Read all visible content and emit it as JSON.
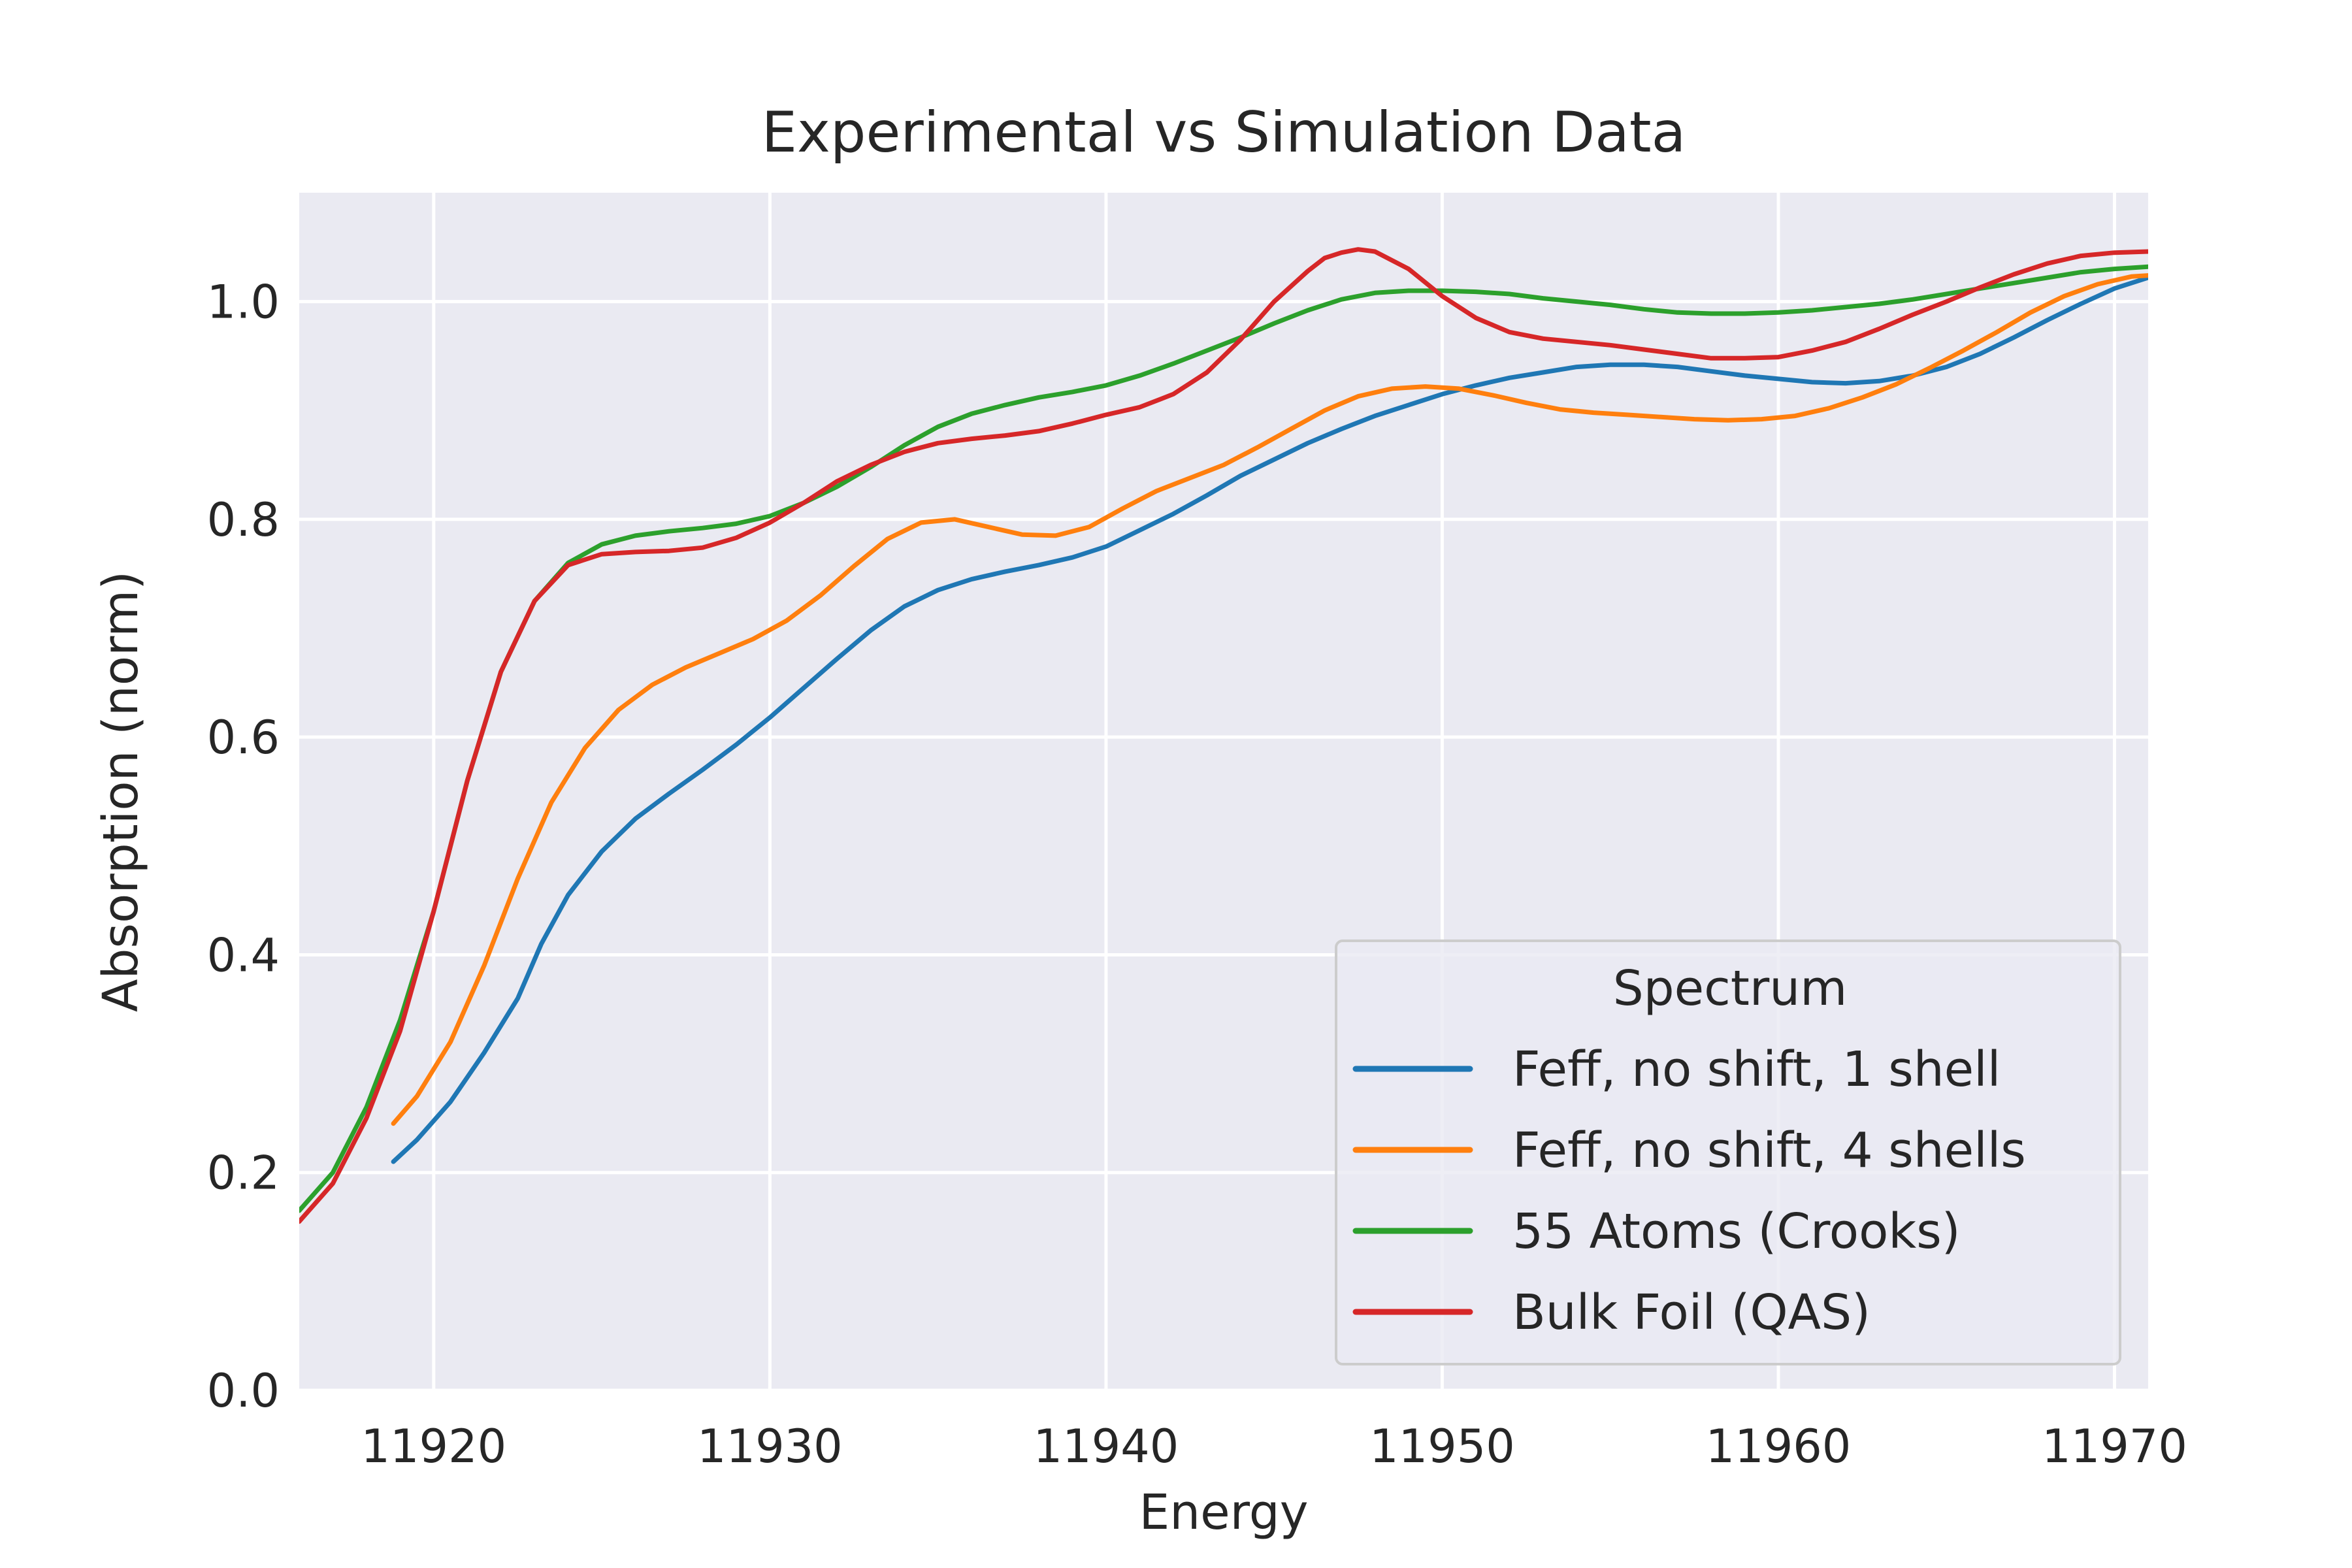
{
  "chart_data": {
    "type": "line",
    "title": "Experimental vs Simulation Data",
    "xlabel": "Energy",
    "ylabel": "Absorption (norm)",
    "xlim": [
      11916,
      11971
    ],
    "ylim": [
      0.0,
      1.1
    ],
    "xticks": [
      "11920",
      "11930",
      "11940",
      "11950",
      "11960",
      "11970"
    ],
    "yticks": [
      "0.0",
      "0.2",
      "0.4",
      "0.6",
      "0.8",
      "1.0"
    ],
    "grid": true,
    "legend": {
      "title": "Spectrum",
      "position": "lower-right"
    },
    "series": [
      {
        "name": "Feff, no shift, 1 shell",
        "color": "#1f77b4",
        "x": [
          11918.8,
          11919.5,
          11920.5,
          11921.5,
          11922.5,
          11923.2,
          11924,
          11925,
          11926,
          11927,
          11928,
          11929,
          11930,
          11931,
          11932,
          11933,
          11934,
          11935,
          11936,
          11937,
          11938,
          11939,
          11940,
          11941,
          11942,
          11943,
          11944,
          11945,
          11946,
          11947,
          11948,
          11949,
          11950,
          11951,
          11952,
          11953,
          11954,
          11955,
          11956,
          11957,
          11958,
          11959,
          11960,
          11961,
          11962,
          11963,
          11964,
          11965,
          11966,
          11967,
          11968,
          11969,
          11970,
          11971
        ],
        "y": [
          0.21,
          0.23,
          0.265,
          0.31,
          0.36,
          0.41,
          0.455,
          0.495,
          0.525,
          0.548,
          0.57,
          0.593,
          0.618,
          0.645,
          0.672,
          0.698,
          0.72,
          0.735,
          0.745,
          0.752,
          0.758,
          0.765,
          0.775,
          0.79,
          0.805,
          0.822,
          0.84,
          0.855,
          0.87,
          0.883,
          0.895,
          0.905,
          0.915,
          0.923,
          0.93,
          0.935,
          0.94,
          0.942,
          0.942,
          0.94,
          0.936,
          0.932,
          0.929,
          0.926,
          0.925,
          0.927,
          0.932,
          0.94,
          0.952,
          0.967,
          0.983,
          0.998,
          1.012,
          1.022
        ]
      },
      {
        "name": "Feff, no shift, 4 shells",
        "color": "#ff7f0e",
        "x": [
          11918.8,
          11919.5,
          11920.5,
          11921.5,
          11922.5,
          11923.5,
          11924.5,
          11925.5,
          11926.5,
          11927.5,
          11928.5,
          11929.5,
          11930.5,
          11931.5,
          11932.5,
          11933.5,
          11934.5,
          11935.5,
          11936.5,
          11937.5,
          11938.5,
          11939.5,
          11940.5,
          11941.5,
          11942.5,
          11943.5,
          11944.5,
          11945.5,
          11946.5,
          11947.5,
          11948.5,
          11949.5,
          11950.5,
          11951.5,
          11952.5,
          11953.5,
          11954.5,
          11955.5,
          11956.5,
          11957.5,
          11958.5,
          11959.5,
          11960.5,
          11961.5,
          11962.5,
          11963.5,
          11964.5,
          11965.5,
          11966.5,
          11967.5,
          11968.5,
          11969.5,
          11970.5,
          11971
        ],
        "y": [
          0.245,
          0.27,
          0.32,
          0.39,
          0.47,
          0.54,
          0.59,
          0.625,
          0.648,
          0.664,
          0.677,
          0.69,
          0.707,
          0.73,
          0.757,
          0.782,
          0.797,
          0.8,
          0.793,
          0.786,
          0.785,
          0.793,
          0.81,
          0.826,
          0.838,
          0.85,
          0.866,
          0.883,
          0.9,
          0.913,
          0.92,
          0.922,
          0.92,
          0.914,
          0.907,
          0.901,
          0.898,
          0.896,
          0.894,
          0.892,
          0.891,
          0.892,
          0.895,
          0.902,
          0.912,
          0.924,
          0.939,
          0.955,
          0.972,
          0.99,
          1.005,
          1.016,
          1.023,
          1.024
        ]
      },
      {
        "name": "55 Atoms (Crooks)",
        "color": "#2ca02c",
        "x": [
          11916,
          11917,
          11918,
          11919,
          11920,
          11921,
          11922,
          11923,
          11924,
          11925,
          11926,
          11927,
          11928,
          11929,
          11930,
          11931,
          11932,
          11933,
          11934,
          11935,
          11936,
          11937,
          11938,
          11939,
          11940,
          11941,
          11942,
          11943,
          11944,
          11945,
          11946,
          11947,
          11948,
          11949,
          11950,
          11951,
          11952,
          11953,
          11954,
          11955,
          11956,
          11957,
          11958,
          11959,
          11960,
          11961,
          11962,
          11963,
          11964,
          11965,
          11966,
          11967,
          11968,
          11969,
          11970,
          11971
        ],
        "y": [
          0.165,
          0.2,
          0.26,
          0.34,
          0.44,
          0.56,
          0.66,
          0.725,
          0.76,
          0.777,
          0.785,
          0.789,
          0.792,
          0.796,
          0.803,
          0.815,
          0.83,
          0.848,
          0.868,
          0.885,
          0.897,
          0.905,
          0.912,
          0.917,
          0.923,
          0.932,
          0.943,
          0.955,
          0.967,
          0.98,
          0.992,
          1.002,
          1.008,
          1.01,
          1.01,
          1.009,
          1.007,
          1.003,
          1.0,
          0.997,
          0.993,
          0.99,
          0.989,
          0.989,
          0.99,
          0.992,
          0.995,
          0.998,
          1.002,
          1.007,
          1.012,
          1.017,
          1.022,
          1.027,
          1.03,
          1.032
        ]
      },
      {
        "name": "Bulk Foil (QAS)",
        "color": "#d62728",
        "x": [
          11916,
          11917,
          11918,
          11919,
          11920,
          11921,
          11922,
          11923,
          11924,
          11925,
          11926,
          11927,
          11928,
          11929,
          11930,
          11931,
          11932,
          11933,
          11934,
          11935,
          11936,
          11937,
          11938,
          11939,
          11940,
          11941,
          11942,
          11943,
          11944,
          11945,
          11946,
          11946.5,
          11947,
          11947.5,
          11948,
          11949,
          11950,
          11951,
          11952,
          11953,
          11954,
          11955,
          11956,
          11957,
          11958,
          11959,
          11960,
          11961,
          11962,
          11963,
          11964,
          11965,
          11966,
          11967,
          11968,
          11969,
          11970,
          11971
        ],
        "y": [
          0.155,
          0.19,
          0.25,
          0.33,
          0.44,
          0.56,
          0.66,
          0.725,
          0.758,
          0.768,
          0.77,
          0.771,
          0.774,
          0.783,
          0.797,
          0.815,
          0.835,
          0.85,
          0.862,
          0.87,
          0.874,
          0.877,
          0.881,
          0.888,
          0.896,
          0.903,
          0.915,
          0.935,
          0.965,
          1.0,
          1.028,
          1.04,
          1.045,
          1.048,
          1.046,
          1.03,
          1.005,
          0.985,
          0.972,
          0.966,
          0.963,
          0.96,
          0.956,
          0.952,
          0.948,
          0.948,
          0.949,
          0.955,
          0.963,
          0.975,
          0.988,
          1.0,
          1.013,
          1.025,
          1.035,
          1.042,
          1.045,
          1.046
        ]
      }
    ]
  }
}
